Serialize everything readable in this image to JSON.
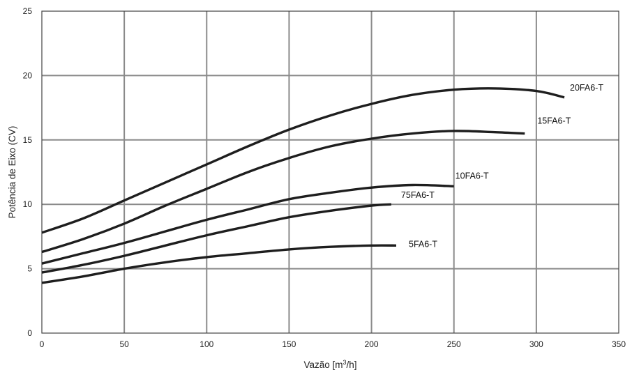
{
  "chart_data": {
    "type": "line",
    "xlabel_main": "Vazão [m",
    "xlabel_sup": "3",
    "xlabel_end": "/h]",
    "ylabel": "Potência de Eixo (CV)",
    "xlim": [
      0,
      350
    ],
    "ylim": [
      0,
      25
    ],
    "grid": true,
    "x_ticks": [
      "0",
      "50",
      "100",
      "150",
      "200",
      "250",
      "300",
      "350"
    ],
    "y_ticks": [
      "0",
      "5",
      "10",
      "15",
      "20",
      "25"
    ],
    "x_tick_values": [
      0,
      50,
      100,
      150,
      200,
      250,
      300,
      350
    ],
    "y_tick_values": [
      0,
      5,
      10,
      15,
      20,
      25
    ],
    "series": [
      {
        "name": "20FA6-T",
        "x": [
          0,
          25,
          50,
          75,
          100,
          125,
          150,
          175,
          200,
          225,
          250,
          275,
          300,
          317
        ],
        "y": [
          7.8,
          8.9,
          10.3,
          11.7,
          13.1,
          14.5,
          15.8,
          16.9,
          17.8,
          18.5,
          18.9,
          19.0,
          18.8,
          18.3
        ]
      },
      {
        "name": "15FA6-T",
        "x": [
          0,
          25,
          50,
          75,
          100,
          125,
          150,
          175,
          200,
          225,
          250,
          275,
          293
        ],
        "y": [
          6.3,
          7.3,
          8.5,
          9.9,
          11.2,
          12.5,
          13.6,
          14.5,
          15.1,
          15.5,
          15.7,
          15.6,
          15.5
        ]
      },
      {
        "name": "10FA6-T",
        "x": [
          0,
          25,
          50,
          75,
          100,
          125,
          150,
          175,
          200,
          225,
          250
        ],
        "y": [
          5.4,
          6.2,
          7.0,
          7.9,
          8.8,
          9.6,
          10.4,
          10.9,
          11.3,
          11.5,
          11.4
        ]
      },
      {
        "name": "75FA6-T",
        "x": [
          0,
          25,
          50,
          75,
          100,
          125,
          150,
          175,
          200,
          212
        ],
        "y": [
          4.7,
          5.3,
          6.0,
          6.8,
          7.6,
          8.3,
          9.0,
          9.5,
          9.9,
          10.0
        ]
      },
      {
        "name": "5FA6-T",
        "x": [
          0,
          25,
          50,
          75,
          100,
          125,
          150,
          175,
          200,
          215
        ],
        "y": [
          3.9,
          4.4,
          5.0,
          5.5,
          5.9,
          6.2,
          6.5,
          6.7,
          6.8,
          6.8
        ]
      }
    ]
  }
}
